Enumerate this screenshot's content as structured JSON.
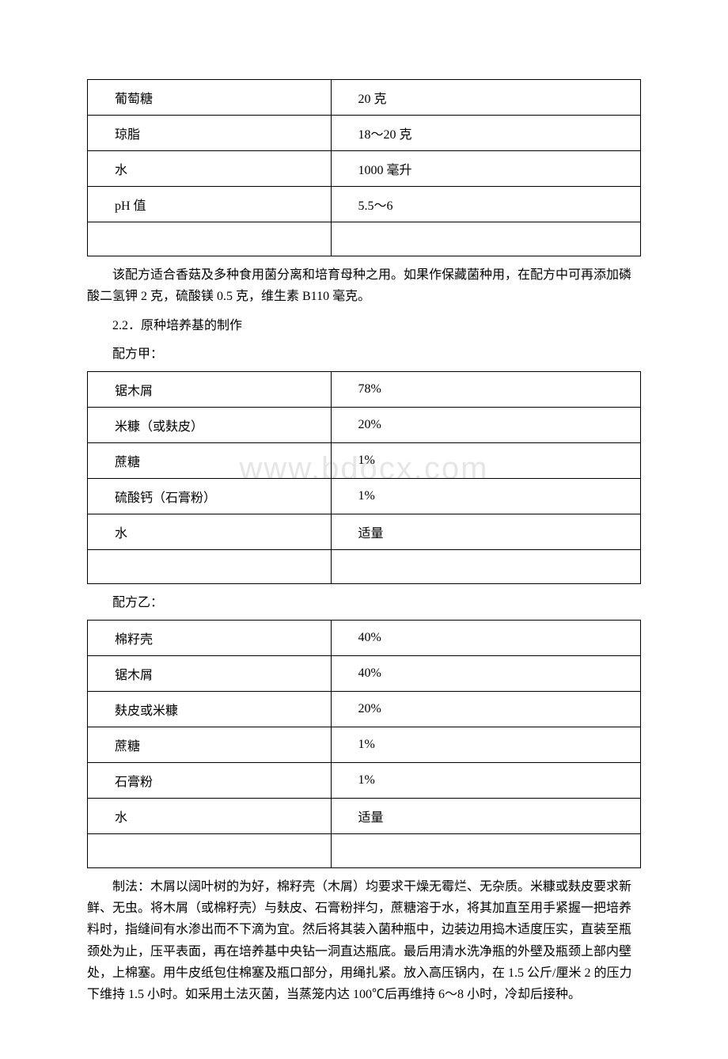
{
  "watermark": "www.bdocx.com",
  "table1": {
    "rows": [
      {
        "name": "葡萄糖",
        "value": "20 克"
      },
      {
        "name": "琼脂",
        "value": "18～20 克"
      },
      {
        "name": "水",
        "value": "1000 毫升"
      },
      {
        "name": "pH 值",
        "value": "5.5～6"
      },
      {
        "name": "",
        "value": ""
      }
    ]
  },
  "para1": "该配方适合香菇及多种食用菌分离和培育母种之用。如果作保藏菌种用，在配方中可再添加磷酸二氢钾 2 克，硫酸镁 0.5 克，维生素 B110 毫克。",
  "section22": "2.2．原种培养基的制作",
  "recipeA_label": "配方甲：",
  "table2": {
    "rows": [
      {
        "name": "锯木屑",
        "value": "78%"
      },
      {
        "name": "米糠（或麸皮）",
        "value": "20%"
      },
      {
        "name": "蔗糖",
        "value": "1%"
      },
      {
        "name": "硫酸钙（石膏粉）",
        "value": "1%"
      },
      {
        "name": "水",
        "value": "适量"
      },
      {
        "name": "",
        "value": ""
      }
    ]
  },
  "recipeB_label": "配方乙：",
  "table3": {
    "rows": [
      {
        "name": "棉籽壳",
        "value": "40%"
      },
      {
        "name": "锯木屑",
        "value": "40%"
      },
      {
        "name": "麸皮或米糠",
        "value": "20%"
      },
      {
        "name": "蔗糖",
        "value": "1%"
      },
      {
        "name": "石膏粉",
        "value": "1%"
      },
      {
        "name": "水",
        "value": "适量"
      },
      {
        "name": "",
        "value": ""
      }
    ]
  },
  "para2": "制法：木屑以阔叶树的为好，棉籽壳（木屑）均要求干燥无霉烂、无杂质。米糠或麸皮要求新鲜、无虫。将木屑（或棉籽壳）与麸皮、石膏粉拌匀，蔗糖溶于水，将其加直至用手紧握一把培养料时，指缝间有水渗出而不下滴为宜。然后将其装入菌种瓶中，边装边用捣木适度压实，直装至瓶颈处为止，压平表面，再在培养基中央钻一洞直达瓶底。最后用清水洗净瓶的外壁及瓶颈上部内壁处，上棉塞。用牛皮纸包住棉塞及瓶口部分，用绳扎紧。放入高压锅内，在 1.5 公斤/厘米 2 的压力下维持 1.5 小时。如采用土法灭菌，当蒸笼内达 100℃后再维持 6～8 小时，冷却后接种。"
}
